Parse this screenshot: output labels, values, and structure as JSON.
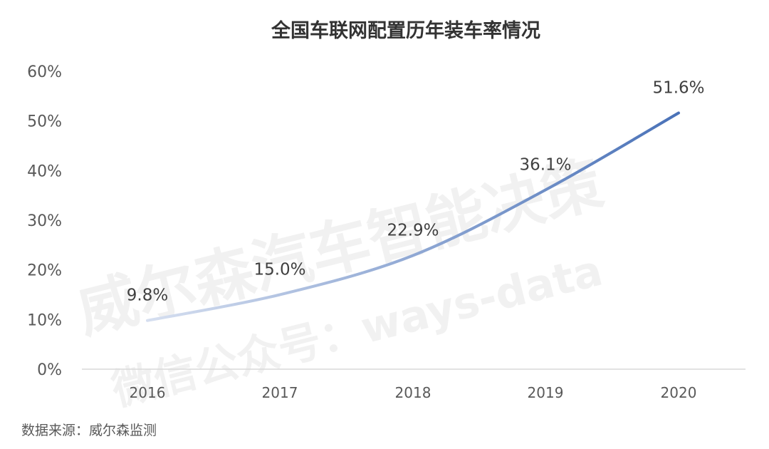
{
  "chart_data": {
    "type": "line",
    "title": "全国车联网配置历年装车率情况",
    "categories": [
      "2016",
      "2017",
      "2018",
      "2019",
      "2020"
    ],
    "series": [
      {
        "values": [
          9.8,
          15.0,
          22.9,
          36.1,
          51.6
        ]
      }
    ],
    "data_labels": [
      "9.8%",
      "15.0%",
      "22.9%",
      "36.1%",
      "51.6%"
    ],
    "y_ticks": [
      "0%",
      "10%",
      "20%",
      "30%",
      "40%",
      "50%",
      "60%"
    ],
    "ylim": [
      0,
      60
    ],
    "grid": false,
    "legend": "none",
    "line_color_start": "#d6dff0",
    "line_color_end": "#4a72b8"
  },
  "source_text": "数据来源：威尔森监测",
  "watermark": {
    "line1": "威尔森汽车智能决策",
    "line2": "微信公众号：ways-data"
  }
}
